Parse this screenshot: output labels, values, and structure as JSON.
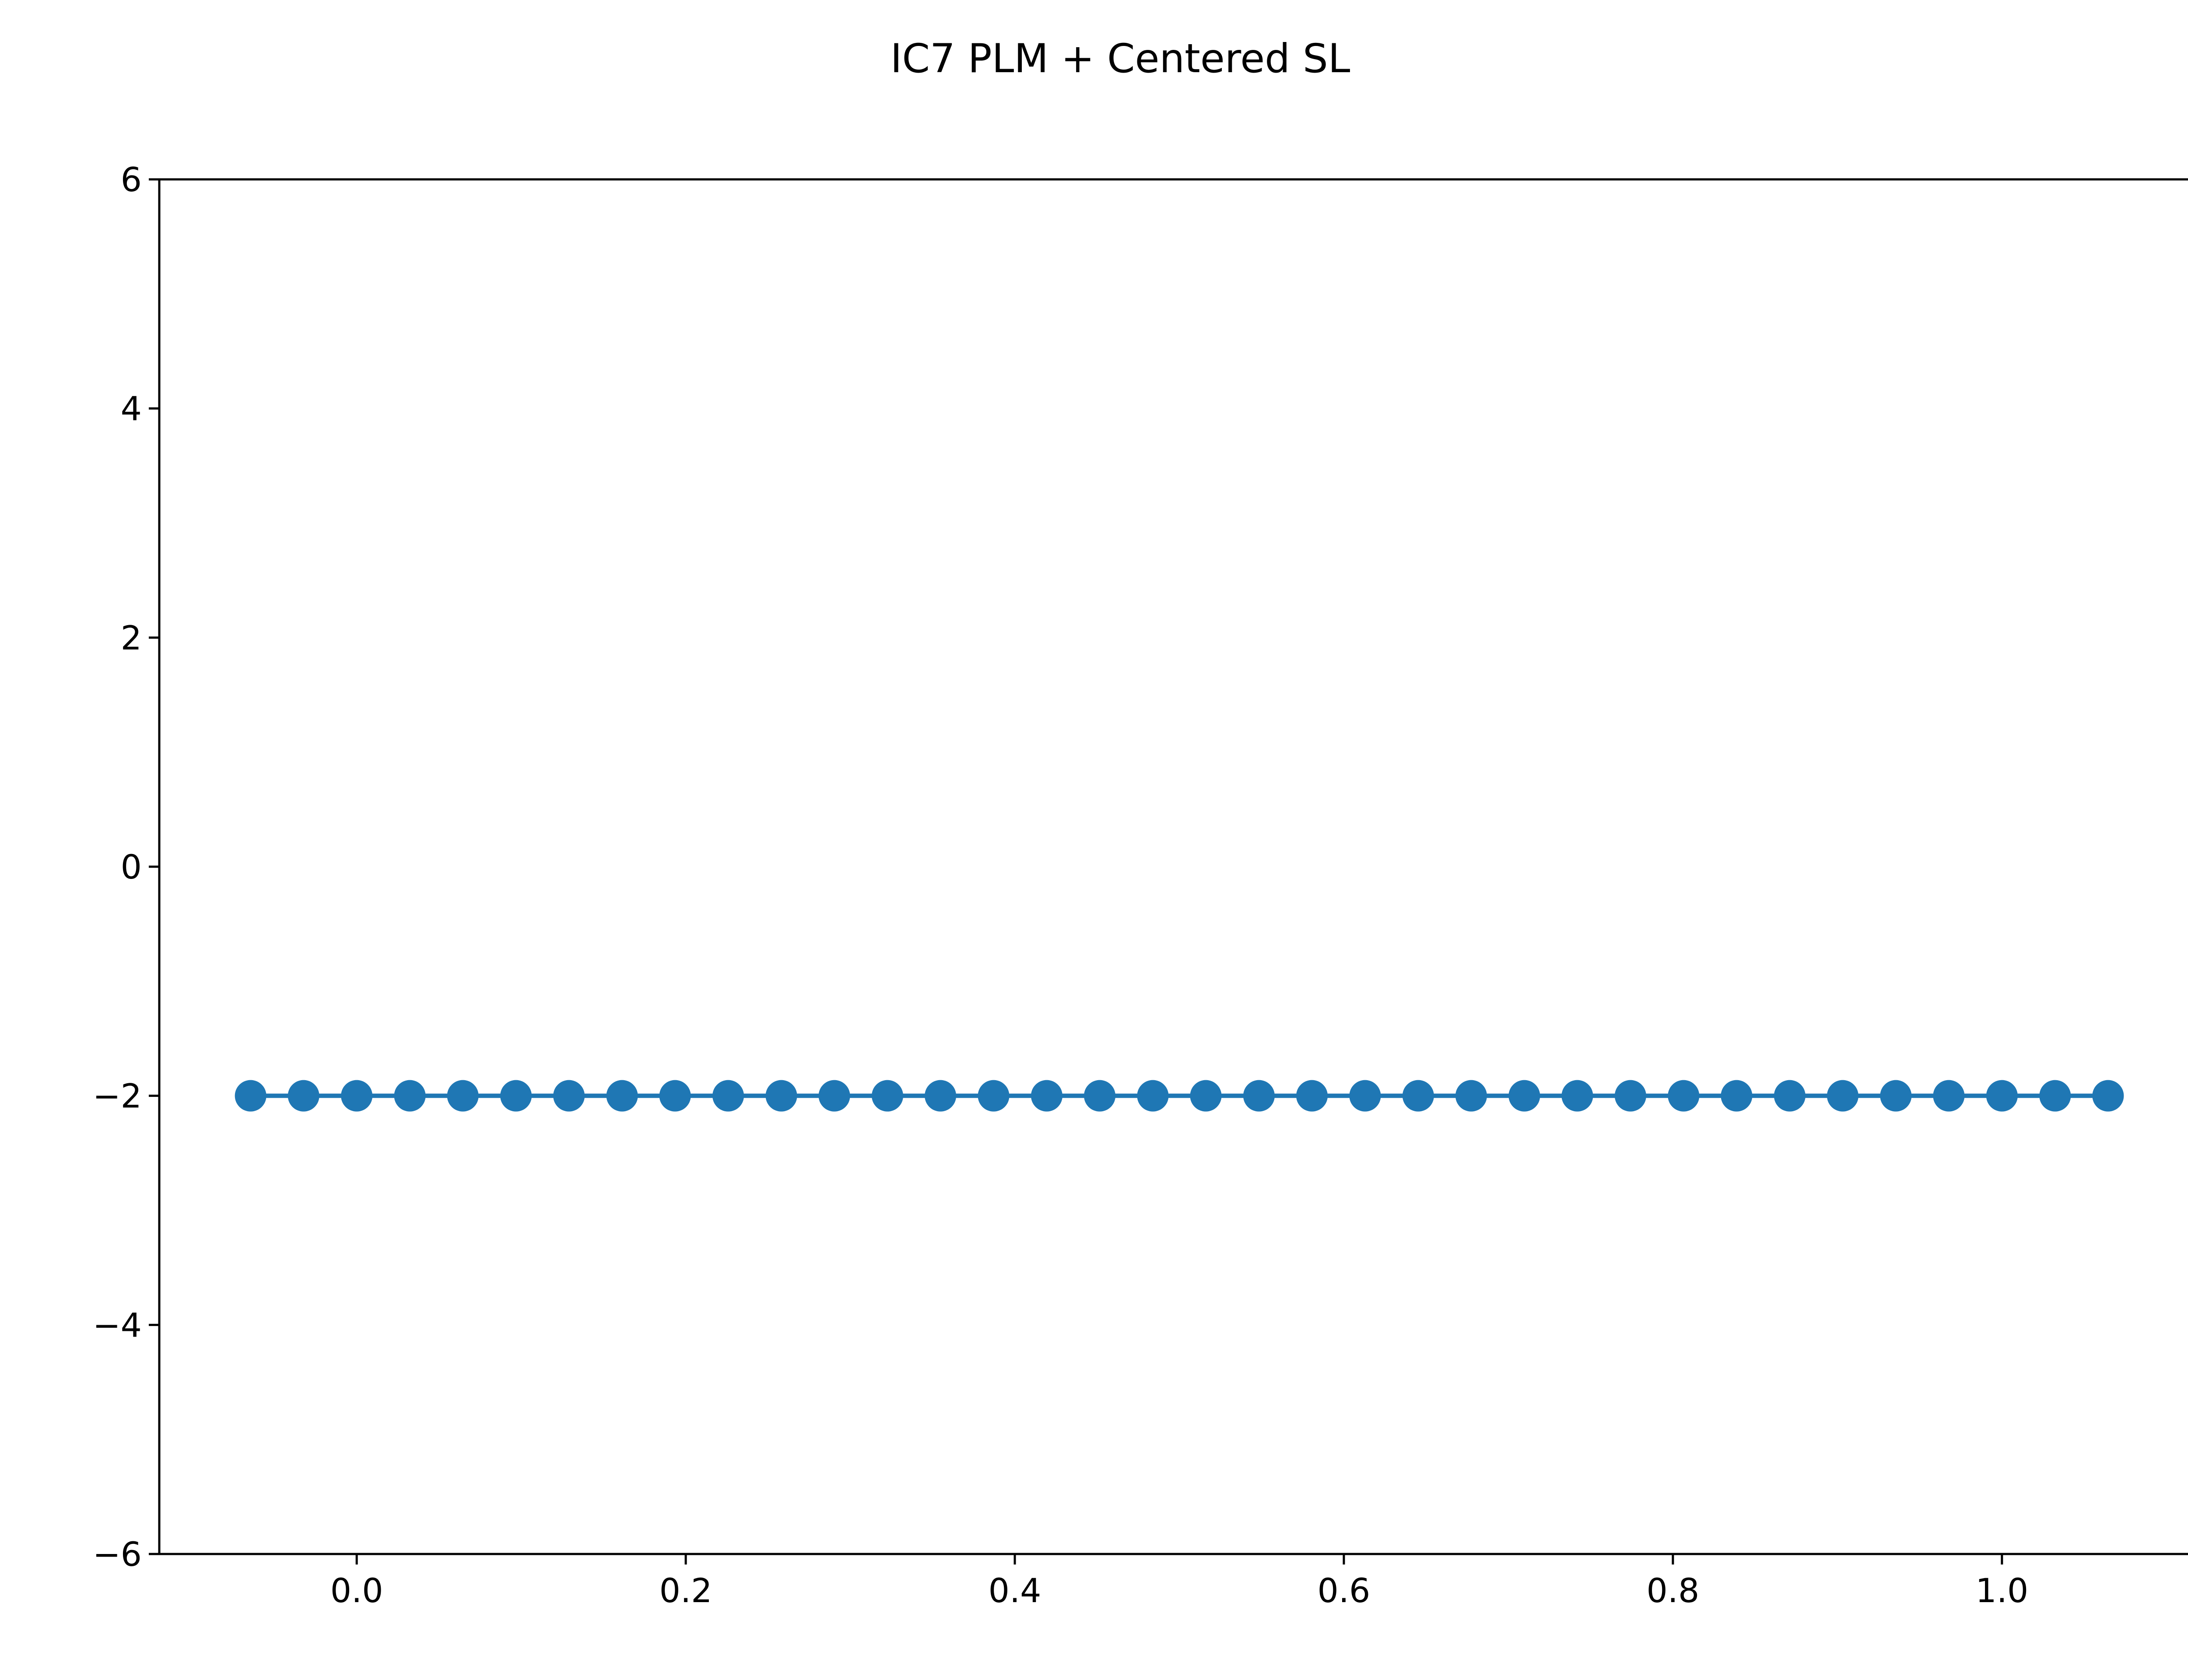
{
  "chart_data": {
    "type": "line",
    "title": "IC7 PLM + Centered SL",
    "xlabel": "",
    "ylabel": "",
    "xlim": [
      -0.12,
      1.12
    ],
    "ylim": [
      -6,
      6
    ],
    "x_ticks": [
      0.0,
      0.2,
      0.4,
      0.6,
      0.8,
      1.0
    ],
    "x_tick_labels": [
      "0.0",
      "0.2",
      "0.4",
      "0.6",
      "0.8",
      "1.0"
    ],
    "y_ticks": [
      -6,
      -4,
      -2,
      0,
      2,
      4,
      6
    ],
    "y_tick_labels": [
      "−6",
      "−4",
      "−2",
      "0",
      "2",
      "4",
      "6"
    ],
    "grid": false,
    "legend": false,
    "series": [
      {
        "color": "#1f77b4",
        "marker": "circle",
        "x": [
          -0.0645,
          -0.0323,
          0.0,
          0.0323,
          0.0645,
          0.0968,
          0.129,
          0.1613,
          0.1935,
          0.2258,
          0.2581,
          0.2903,
          0.3226,
          0.3548,
          0.3871,
          0.4194,
          0.4516,
          0.4839,
          0.5161,
          0.5484,
          0.5806,
          0.6129,
          0.6452,
          0.6774,
          0.7097,
          0.7419,
          0.7742,
          0.8065,
          0.8387,
          0.871,
          0.9032,
          0.9355,
          0.9677,
          1.0,
          1.0323,
          1.0645
        ],
        "y": [
          -2,
          -2,
          -2,
          -2,
          -2,
          -2,
          -2,
          -2,
          -2,
          -2,
          -2,
          -2,
          -2,
          -2,
          -2,
          -2,
          -2,
          -2,
          -2,
          -2,
          -2,
          -2,
          -2,
          -2,
          -2,
          -2,
          -2,
          -2,
          -2,
          -2,
          -2,
          -2,
          -2,
          -2,
          -2,
          -2
        ]
      }
    ]
  }
}
